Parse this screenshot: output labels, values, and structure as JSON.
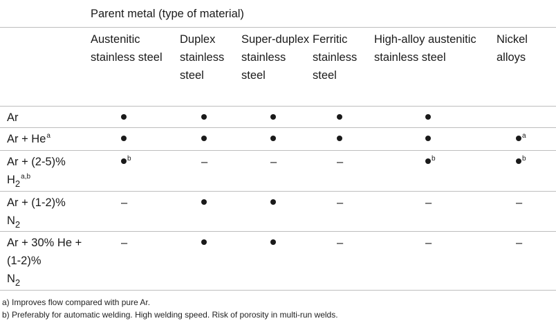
{
  "group_header": "Parent metal (type of material)",
  "columns": [
    {
      "label": "Austenitic stainless steel"
    },
    {
      "label": "Duplex stainless steel"
    },
    {
      "label": "Super-duplex stainless steel"
    },
    {
      "label": "Ferritic stainless steel"
    },
    {
      "label": "High-alloy austenitic stainless steel"
    },
    {
      "label": "Nickel alloys"
    }
  ],
  "rows": [
    {
      "gas": "Ar",
      "gas_sup": "",
      "gas_line2": "",
      "gas_line2_sub": "",
      "gas_line2_sup": "",
      "cells": [
        {
          "mark": "dot",
          "note": ""
        },
        {
          "mark": "dot",
          "note": ""
        },
        {
          "mark": "dot",
          "note": ""
        },
        {
          "mark": "dot",
          "note": ""
        },
        {
          "mark": "dot",
          "note": ""
        },
        {
          "mark": "",
          "note": ""
        }
      ]
    },
    {
      "gas": "Ar + He",
      "gas_sup": "a",
      "gas_line2": "",
      "gas_line2_sub": "",
      "gas_line2_sup": "",
      "cells": [
        {
          "mark": "dot",
          "note": ""
        },
        {
          "mark": "dot",
          "note": ""
        },
        {
          "mark": "dot",
          "note": ""
        },
        {
          "mark": "dot",
          "note": ""
        },
        {
          "mark": "dot",
          "note": ""
        },
        {
          "mark": "dot",
          "note": "a"
        }
      ]
    },
    {
      "gas": "Ar + (2-5)%",
      "gas_sup": "",
      "gas_line2": "H",
      "gas_line2_sub": "2",
      "gas_line2_sup": "a,b",
      "cells": [
        {
          "mark": "dot",
          "note": "b"
        },
        {
          "mark": "dash",
          "note": ""
        },
        {
          "mark": "dash",
          "note": ""
        },
        {
          "mark": "dash",
          "note": ""
        },
        {
          "mark": "dot",
          "note": "b"
        },
        {
          "mark": "dot",
          "note": "b"
        }
      ]
    },
    {
      "gas": "Ar + (1-2)%",
      "gas_sup": "",
      "gas_line2": "N",
      "gas_line2_sub": "2",
      "gas_line2_sup": "",
      "cells": [
        {
          "mark": "dash",
          "note": ""
        },
        {
          "mark": "dot",
          "note": ""
        },
        {
          "mark": "dot",
          "note": ""
        },
        {
          "mark": "dash",
          "note": ""
        },
        {
          "mark": "dash",
          "note": ""
        },
        {
          "mark": "dash",
          "note": ""
        }
      ]
    },
    {
      "gas": "Ar + 30% He + (1-2)%",
      "gas_sup": "",
      "gas_line2": "N",
      "gas_line2_sub": "2",
      "gas_line2_sup": "",
      "cells": [
        {
          "mark": "dash",
          "note": ""
        },
        {
          "mark": "dot",
          "note": ""
        },
        {
          "mark": "dot",
          "note": ""
        },
        {
          "mark": "dash",
          "note": ""
        },
        {
          "mark": "dash",
          "note": ""
        },
        {
          "mark": "dash",
          "note": ""
        }
      ]
    }
  ],
  "dash_symbol": "–",
  "footnotes": [
    "a) Improves flow compared with pure Ar.",
    "b) Preferably for automatic welding. High welding speed. Risk of porosity in multi-run welds."
  ]
}
